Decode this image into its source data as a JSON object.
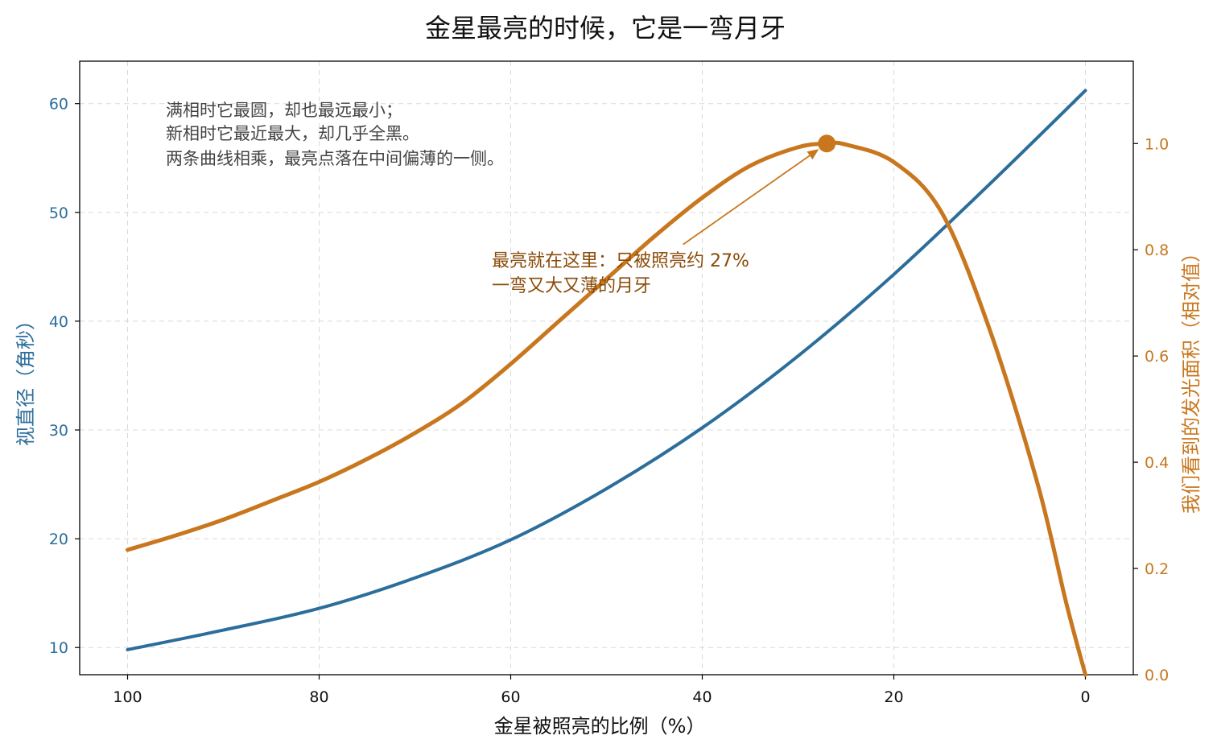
{
  "chart_data": {
    "type": "line",
    "title": "金星最亮的时候，它是一弯月牙",
    "xlabel": "金星被照亮的比例（%）",
    "ylabel_left": "视直径（角秒）",
    "ylabel_right": "我们看到的发光面积（相对值）",
    "xlim": [
      105,
      -5
    ],
    "ylim_left": [
      7.5,
      63.9
    ],
    "ylim_right": [
      0.0,
      1.155
    ],
    "x_ticks": [
      100,
      80,
      60,
      40,
      20,
      0
    ],
    "y_left_ticks": [
      10,
      20,
      30,
      40,
      50,
      60
    ],
    "y_right_ticks": [
      0.0,
      0.2,
      0.4,
      0.6,
      0.8,
      1.0
    ],
    "y_right_tick_labels": [
      "0.0",
      "0.2",
      "0.4",
      "0.6",
      "0.8",
      "1.0"
    ],
    "grid": true,
    "series": [
      {
        "axis": "left",
        "color": "#2c6e9b",
        "x": [
          100,
          90,
          80,
          70,
          60,
          50,
          40,
          30,
          20,
          10,
          0
        ],
        "values": [
          9.8,
          11.6,
          13.6,
          16.4,
          19.9,
          24.6,
          30.2,
          36.8,
          44.3,
          52.6,
          61.2
        ]
      },
      {
        "axis": "right",
        "color": "#c8771e",
        "x": [
          100,
          95,
          90,
          85,
          80,
          75,
          70,
          65,
          60,
          55,
          50,
          45,
          40,
          35,
          30,
          27,
          25,
          20,
          15,
          10,
          5,
          2,
          0
        ],
        "values": [
          0.235,
          0.262,
          0.292,
          0.327,
          0.363,
          0.406,
          0.455,
          0.512,
          0.585,
          0.665,
          0.745,
          0.825,
          0.898,
          0.958,
          0.993,
          1.0,
          0.998,
          0.965,
          0.87,
          0.65,
          0.36,
          0.135,
          0.0
        ]
      }
    ],
    "peak": {
      "x": 27,
      "y": 1.0,
      "color": "#c8771e"
    },
    "annotations": {
      "note_lines": [
        "满相时它最圆，却也最远最小；",
        "新相时它最近最大，却几乎全黑。",
        "两条曲线相乘，最亮点落在中间偏薄的一侧。"
      ],
      "callout_lines": [
        "最亮就在这里：只被照亮约 27%",
        "一弯又大又薄的月牙"
      ],
      "callout_anchor": {
        "x": 42,
        "y": 0.81
      }
    }
  }
}
